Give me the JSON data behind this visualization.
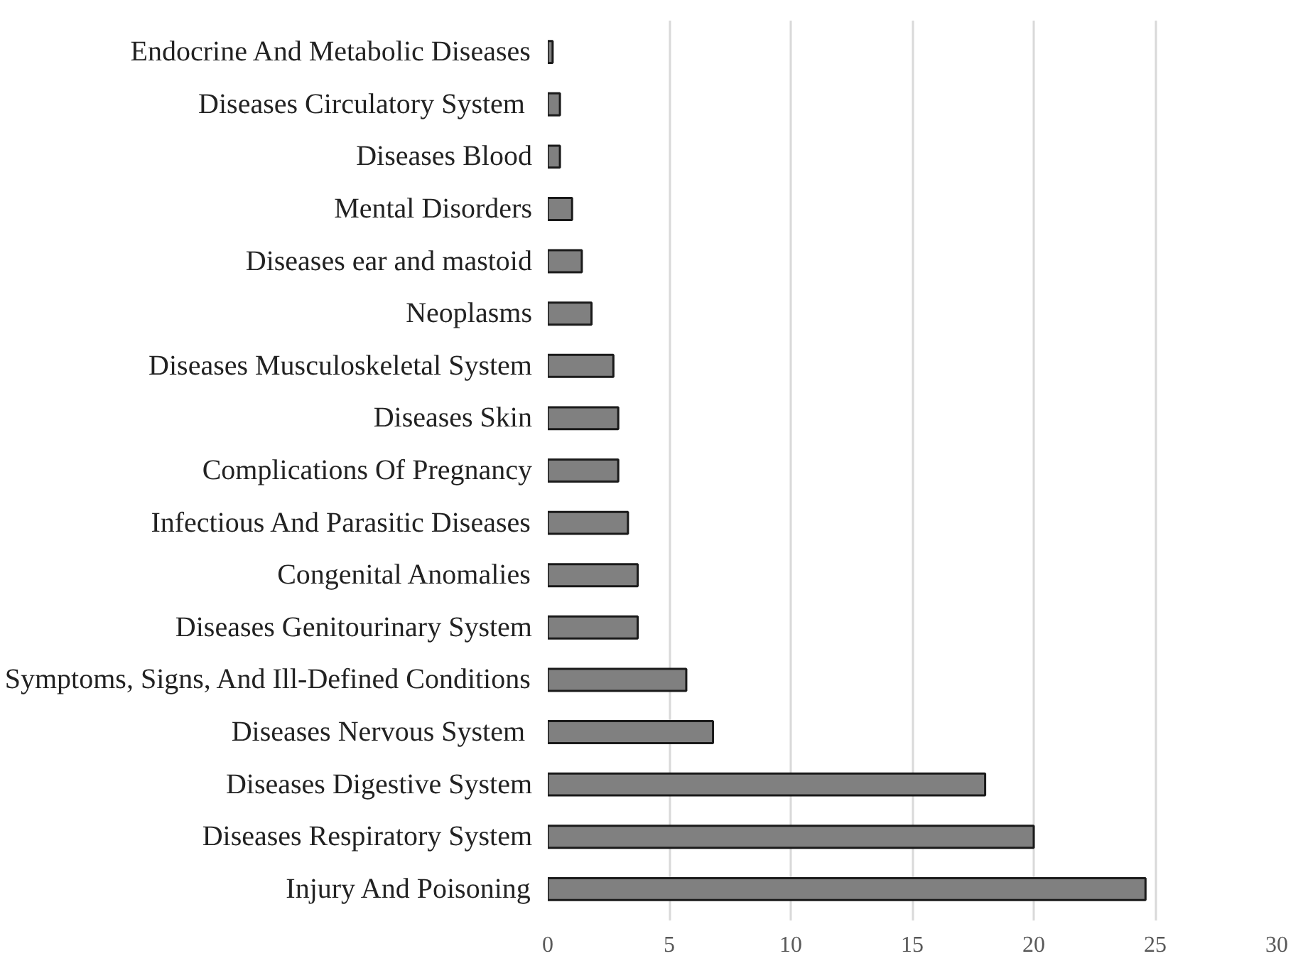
{
  "chart_data": {
    "type": "bar",
    "orientation": "horizontal",
    "categories": [
      "Endocrine And Metabolic Diseases",
      "Diseases  Circulatory System",
      "Diseases Blood",
      "Mental Disorders",
      "Diseases ear and mastoid",
      "Neoplasms",
      "Diseases Musculoskeletal System",
      "Diseases Skin",
      "Complications Of Pregnancy",
      "Infectious And Parasitic Diseases",
      "Congenital Anomalies",
      "Diseases Genitourinary System",
      "Symptoms, Signs, And Ill-Defined Conditions",
      "Diseases  Nervous System",
      "Diseases Digestive System",
      "Diseases Respiratory System",
      "Injury And Poisoning"
    ],
    "values": [
      0.2,
      0.5,
      0.5,
      1.0,
      1.4,
      1.8,
      2.7,
      2.9,
      2.9,
      3.3,
      3.7,
      3.7,
      5.7,
      6.8,
      18.0,
      20.0,
      24.6
    ],
    "color": "#808080",
    "xlim": [
      0,
      30
    ],
    "xticks": [
      0,
      5,
      10,
      15,
      20,
      25,
      30
    ],
    "grid": "x"
  }
}
